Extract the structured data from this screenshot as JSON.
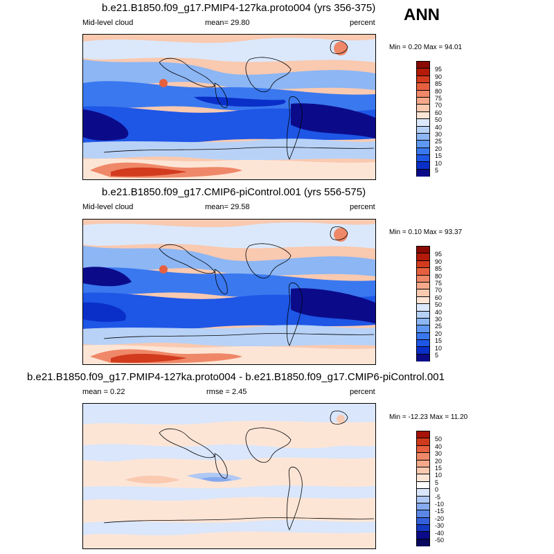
{
  "season": "ANN",
  "colors": {
    "abs": [
      "#0b0b8a",
      "#0a2fc8",
      "#1e56e6",
      "#3a78ef",
      "#5f98f2",
      "#8cb6f4",
      "#b8d2f7",
      "#dbe8fb",
      "#fde5d6",
      "#f9c9b0",
      "#f5a98a",
      "#ef8868",
      "#e6603f",
      "#d23b1e",
      "#b31b08",
      "#8a0a02"
    ],
    "diff": [
      "#0b0b8a",
      "#1538c2",
      "#3460dc",
      "#5a86e6",
      "#86aaee",
      "#b0c9f4",
      "#d9e6fb",
      "#fde5d6",
      "#f9c9b0",
      "#f5a98a",
      "#ef8868",
      "#e6603f",
      "#cf3a1c",
      "#a61306"
    ]
  },
  "panels": [
    {
      "title": "b.e21.B1850.f09_g17.PMIP4-127ka.proto004 (yrs 356-375)",
      "left_label": "Mid-level cloud",
      "center_label": "mean=  29.80",
      "right_label": "percent",
      "minmax": "Min =  0.20 Max =  94.01",
      "cbar_labels": [
        "95",
        "90",
        "85",
        "80",
        "75",
        "70",
        "60",
        "50",
        "40",
        "30",
        "25",
        "20",
        "15",
        "10",
        "5"
      ]
    },
    {
      "title": "b.e21.B1850.f09_g17.CMIP6-piControl.001 (yrs 556-575)",
      "left_label": "Mid-level cloud",
      "center_label": "mean=  29.58",
      "right_label": "percent",
      "minmax": "Min =  0.10 Max =  93.37",
      "cbar_labels": [
        "95",
        "90",
        "85",
        "80",
        "75",
        "70",
        "60",
        "50",
        "40",
        "30",
        "25",
        "20",
        "15",
        "10",
        "5"
      ]
    },
    {
      "title": "b.e21.B1850.f09_g17.PMIP4-127ka.proto004 - b.e21.B1850.f09_g17.CMIP6-piControl.001",
      "left_label": "mean =   0.22",
      "center_label": "rmse =   2.45",
      "right_label": "percent",
      "minmax": "Min = -12.23 Max =  11.20",
      "cbar_labels": [
        "50",
        "40",
        "30",
        "20",
        "15",
        "10",
        "5",
        "0",
        "-5",
        "-10",
        "-15",
        "-20",
        "-30",
        "-40",
        "-50"
      ]
    }
  ]
}
